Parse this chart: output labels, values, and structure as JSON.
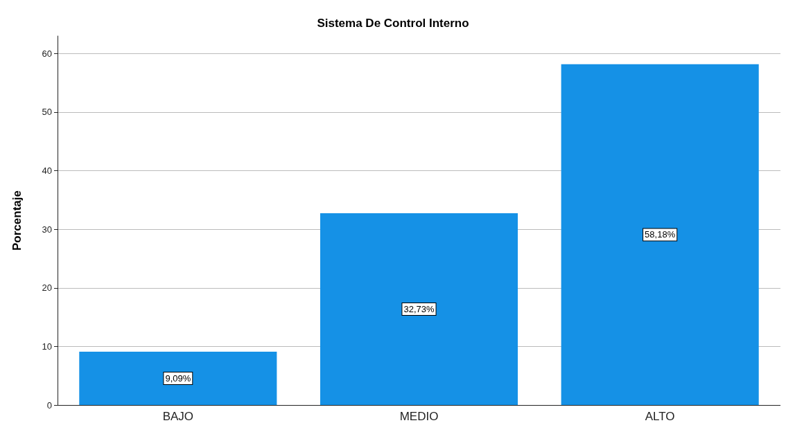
{
  "chart_data": {
    "type": "bar",
    "title": "Sistema De Control Interno",
    "ylabel": "Porcentaje",
    "categories": [
      "BAJO",
      "MEDIO",
      "ALTO"
    ],
    "values": [
      9.09,
      32.73,
      58.18
    ],
    "value_labels": [
      "9,09%",
      "32,73%",
      "58,18%"
    ],
    "color": "#1591e6",
    "ylim": [
      0,
      63
    ],
    "yticks": [
      0,
      10,
      20,
      30,
      40,
      50,
      60
    ],
    "grid": "y"
  }
}
